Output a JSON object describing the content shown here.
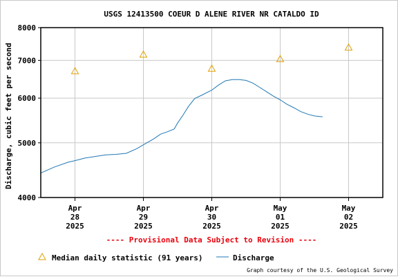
{
  "chart_data": {
    "type": "line",
    "title": "USGS 12413500 COEUR D ALENE RIVER NR CATALDO ID",
    "ylabel": "Discharge, cubic feet per second",
    "xlabel": "",
    "y_scale": "log",
    "ylim": [
      4000,
      8000
    ],
    "y_ticks": [
      4000,
      5000,
      6000,
      7000,
      8000
    ],
    "y_tick_labels": [
      "4000",
      "5000",
      "6000",
      "7000",
      "8000"
    ],
    "x_range": [
      -0.5,
      4.5
    ],
    "x_ticks": [
      {
        "pos": 0,
        "month": "Apr",
        "day": "28",
        "year": "2025"
      },
      {
        "pos": 1,
        "month": "Apr",
        "day": "29",
        "year": "2025"
      },
      {
        "pos": 2,
        "month": "Apr",
        "day": "30",
        "year": "2025"
      },
      {
        "pos": 3,
        "month": "May",
        "day": "01",
        "year": "2025"
      },
      {
        "pos": 4,
        "month": "May",
        "day": "02",
        "year": "2025"
      }
    ],
    "grid": true,
    "series": [
      {
        "name": "Median daily statistic (91 years)",
        "kind": "marker",
        "marker": "triangle",
        "color": "#e0a000",
        "x": [
          0,
          1,
          2,
          3,
          4
        ],
        "y": [
          6700,
          7170,
          6770,
          7040,
          7380
        ]
      },
      {
        "name": "Discharge",
        "kind": "line",
        "color": "#1f77b4",
        "x": [
          -0.5,
          -0.3,
          -0.1,
          0.0,
          0.15,
          0.3,
          0.45,
          0.6,
          0.75,
          0.9,
          1.0,
          1.15,
          1.25,
          1.35,
          1.45,
          1.5,
          1.58,
          1.66,
          1.75,
          1.85,
          2.0,
          2.1,
          2.2,
          2.3,
          2.4,
          2.5,
          2.6,
          2.7,
          2.8,
          2.9,
          3.0,
          3.1,
          3.2,
          3.3,
          3.4,
          3.5,
          3.62
        ],
        "y": [
          4420,
          4530,
          4620,
          4650,
          4700,
          4730,
          4760,
          4770,
          4790,
          4880,
          4960,
          5080,
          5180,
          5230,
          5290,
          5420,
          5600,
          5800,
          5990,
          6070,
          6200,
          6330,
          6440,
          6470,
          6470,
          6450,
          6380,
          6270,
          6160,
          6050,
          5960,
          5850,
          5770,
          5680,
          5620,
          5580,
          5560
        ]
      }
    ],
    "legend_position": "bottom"
  },
  "provisional_note": "---- Provisional Data Subject to Revision ----",
  "credit": "Graph courtesy of the U.S. Geological Survey"
}
